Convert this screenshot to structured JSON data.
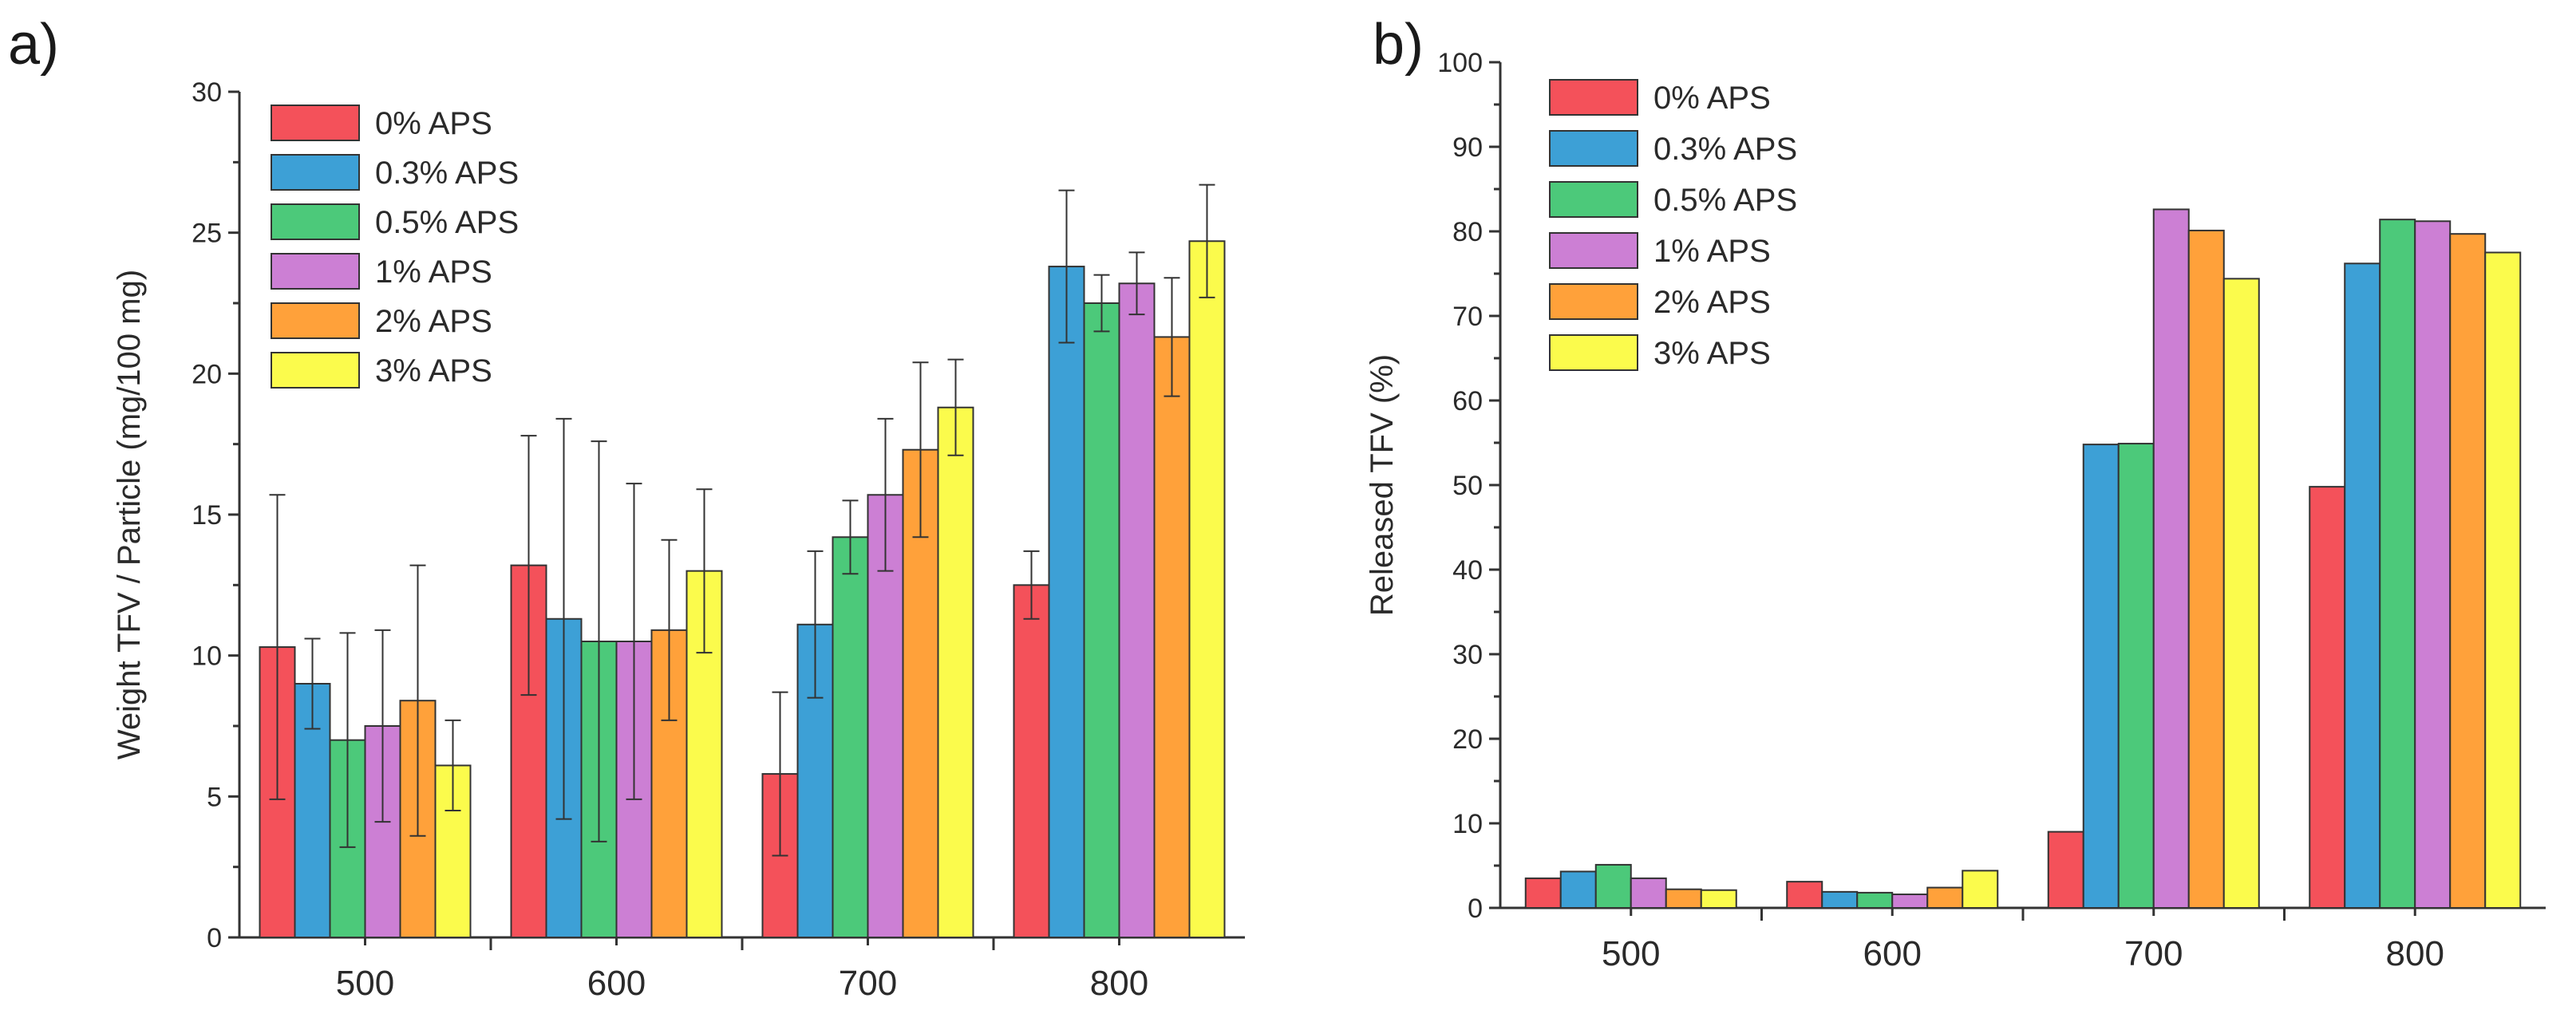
{
  "colors": {
    "0% APS": "#f4515a",
    "0.3% APS": "#3da0d6",
    "0.5% APS": "#4cc97a",
    "1% APS": "#cc7fd4",
    "2% APS": "#ffa13a",
    "3% APS": "#fbfb4c"
  },
  "chart_data": [
    {
      "panel_label": "a)",
      "type": "bar",
      "categories": [
        "500",
        "600",
        "700",
        "800"
      ],
      "ylabel": "Weight TFV / Particle (mg/100 mg)",
      "xlabel": "",
      "ylim": [
        0,
        30
      ],
      "yticks": [
        0,
        5,
        10,
        15,
        20,
        25,
        30
      ],
      "legend_position": "top-left",
      "series": [
        {
          "name": "0% APS",
          "values": [
            10.3,
            13.2,
            5.8,
            12.5
          ],
          "errors": [
            5.4,
            4.6,
            2.9,
            1.2
          ]
        },
        {
          "name": "0.3% APS",
          "values": [
            9.0,
            11.3,
            11.1,
            23.8
          ],
          "errors": [
            1.6,
            7.1,
            2.6,
            2.7
          ]
        },
        {
          "name": "0.5% APS",
          "values": [
            7.0,
            10.5,
            14.2,
            22.5
          ],
          "errors": [
            3.8,
            7.1,
            1.3,
            1.0
          ]
        },
        {
          "name": "1% APS",
          "values": [
            7.5,
            10.5,
            15.7,
            23.2
          ],
          "errors": [
            3.4,
            5.6,
            2.7,
            1.1
          ]
        },
        {
          "name": "2% APS",
          "values": [
            8.4,
            10.9,
            17.3,
            21.3
          ],
          "errors": [
            4.8,
            3.2,
            3.1,
            2.1
          ]
        },
        {
          "name": "3% APS",
          "values": [
            6.1,
            13.0,
            18.8,
            24.7
          ],
          "errors": [
            1.6,
            2.9,
            1.7,
            2.0
          ]
        }
      ]
    },
    {
      "panel_label": "b)",
      "type": "bar",
      "categories": [
        "500",
        "600",
        "700",
        "800"
      ],
      "ylabel": "Released TFV (%)",
      "xlabel": "",
      "ylim": [
        0,
        100
      ],
      "yticks": [
        0,
        10,
        20,
        30,
        40,
        50,
        60,
        70,
        80,
        90,
        100
      ],
      "legend_position": "top-left",
      "series": [
        {
          "name": "0% APS",
          "values": [
            3.5,
            3.1,
            9.0,
            49.8
          ]
        },
        {
          "name": "0.3% APS",
          "values": [
            4.3,
            1.9,
            54.8,
            76.2
          ]
        },
        {
          "name": "0.5% APS",
          "values": [
            5.1,
            1.8,
            54.9,
            81.4
          ]
        },
        {
          "name": "1% APS",
          "values": [
            3.5,
            1.6,
            82.6,
            81.2
          ]
        },
        {
          "name": "2% APS",
          "values": [
            2.2,
            2.4,
            80.1,
            79.7
          ]
        },
        {
          "name": "3% APS",
          "values": [
            2.1,
            4.4,
            74.4,
            77.5
          ]
        }
      ]
    }
  ]
}
